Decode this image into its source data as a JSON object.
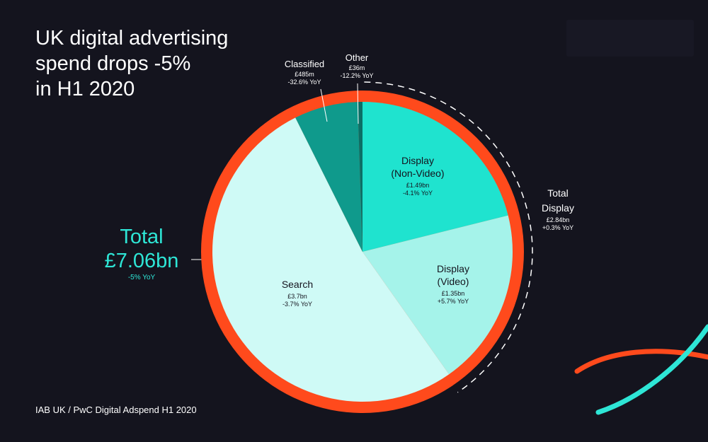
{
  "title_lines": [
    "UK digital advertising",
    "spend drops -5%",
    "in H1 2020"
  ],
  "source": "IAB UK / PwC Digital Adspend H1 2020",
  "total": {
    "label": "Total",
    "amount": "£7.06bn",
    "yoy": "-5% YoY"
  },
  "total_display": {
    "lines": [
      "Total",
      "Display"
    ],
    "amount": "£2.84bn",
    "yoy": "+0.3% YoY"
  },
  "colors": {
    "background": "#14141e",
    "ring": "#ff4a1c",
    "accent_teal": "#2ee6d6"
  },
  "chart_data": {
    "type": "pie",
    "title": "UK digital advertising spend drops -5% in H1 2020",
    "unit": "£bn",
    "total": 7.06,
    "segments": [
      {
        "name_lines": [
          "Display",
          "(Non-Video)"
        ],
        "value": 1.49,
        "value_label": "£1.49bn",
        "yoy": "-4.1% YoY",
        "color": "#1fe3cf"
      },
      {
        "name_lines": [
          "Display",
          "(Video)"
        ],
        "value": 1.35,
        "value_label": "£1.35bn",
        "yoy": "+5.7% YoY",
        "color": "#a5f3ea"
      },
      {
        "name_lines": [
          "Search"
        ],
        "value": 3.7,
        "value_label": "£3.7bn",
        "yoy": "-3.7% YoY",
        "color": "#cffaf6"
      },
      {
        "name_lines": [
          "Classified"
        ],
        "value": 0.485,
        "value_label": "£485m",
        "yoy": "-32.6% YoY",
        "color": "#0f9a8c"
      },
      {
        "name_lines": [
          "Other"
        ],
        "value": 0.036,
        "value_label": "£36m",
        "yoy": "-12.2% YoY",
        "color": "#0b6f66"
      }
    ]
  }
}
